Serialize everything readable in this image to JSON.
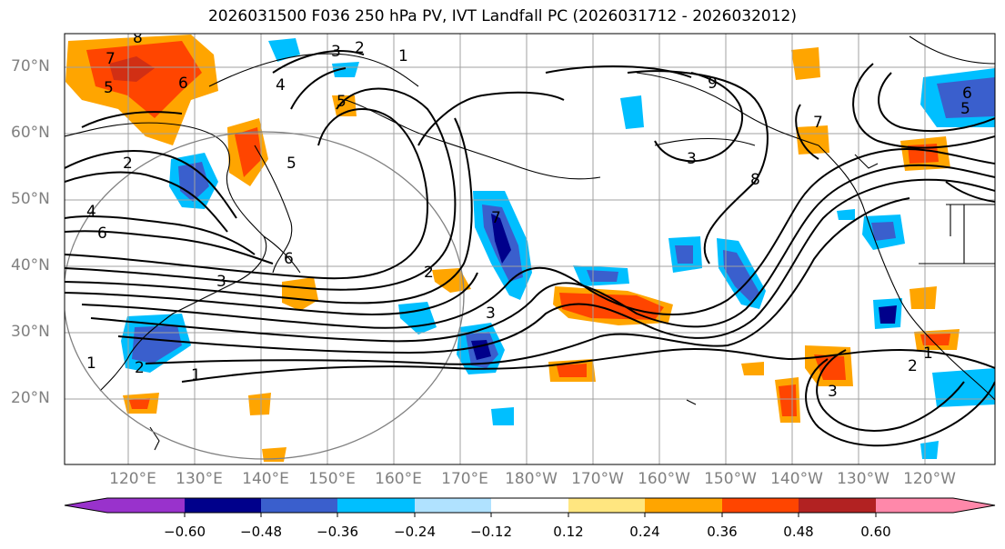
{
  "title": "2026031500 F036 250 hPa PV, IVT Landfall PC (2026031712 - 2026032012)",
  "lat_labels": [
    "70°N",
    "60°N",
    "50°N",
    "40°N",
    "30°N",
    "20°N"
  ],
  "lon_labels": [
    "120°E",
    "130°E",
    "140°E",
    "150°E",
    "160°E",
    "170°E",
    "180°W",
    "170°W",
    "160°W",
    "150°W",
    "140°W",
    "130°W",
    "120°W"
  ],
  "colorbar": {
    "ticks": [
      "−0.60",
      "−0.48",
      "−0.36",
      "−0.24",
      "−0.12",
      "0.12",
      "0.24",
      "0.36",
      "0.48",
      "0.60"
    ],
    "colors": [
      "#9932cc",
      "#00008b",
      "#3a5fcd",
      "#00bfff",
      "#b0e2ff",
      "#ffffff",
      "#ffe680",
      "#ffa500",
      "#ff4500",
      "#b22222",
      "#ff88aa"
    ]
  },
  "contour_labels": [
    "8",
    "7",
    "6",
    "5",
    "3",
    "2",
    "1",
    "4",
    "5",
    "6",
    "7",
    "3",
    "2",
    "1",
    "9",
    "8",
    "7",
    "6",
    "5",
    "2",
    "1",
    "3",
    "5",
    "6",
    "4",
    "3",
    "2",
    "1",
    "2",
    "3"
  ]
}
